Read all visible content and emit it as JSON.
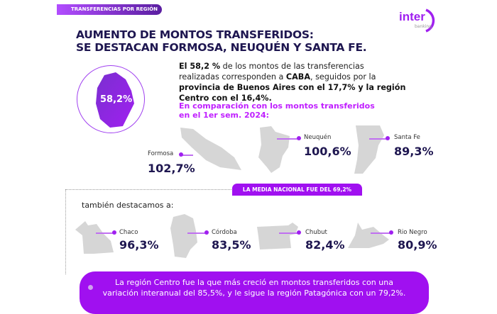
{
  "header": {
    "tag": "TRANSFERENCIAS POR REGIÓN",
    "logo_main": "inter",
    "logo_sub": "banking"
  },
  "title": {
    "line1": "AUMENTO DE MONTOS TRANSFERIDOS:",
    "line2": "SE DESTACAN FORMOSA, NEUQUÉN Y SANTA FE."
  },
  "caba": {
    "value": "58,2%"
  },
  "paragraph": {
    "p1_bold": "El 58,2 %",
    "p1_a": " de los montos de las transferencias realizadas corresponden a ",
    "p1_caba": "CABA",
    "p1_b": ", seguidos por la ",
    "p1_rest": "provincia de Buenos Aires con el 17,7% y la región Centro con el 16,4%."
  },
  "comparison": {
    "line1": "En comparación con los montos transferidos",
    "line2": "en el 1er sem. 2024:"
  },
  "top_provinces": [
    {
      "name": "Formosa",
      "value": "102,7%"
    },
    {
      "name": "Neuquén",
      "value": "100,6%"
    },
    {
      "name": "Santa Fe",
      "value": "89,3%"
    }
  ],
  "media": "LA MEDIA NACIONAL FUE DEL 69,2%",
  "also": "también destacamos a:",
  "other_provinces": [
    {
      "name": "Chaco",
      "value": "96,3%"
    },
    {
      "name": "Córdoba",
      "value": "83,5%"
    },
    {
      "name": "Chubut",
      "value": "82,4%"
    },
    {
      "name": "Rio Negro",
      "value": "80,9%"
    }
  ],
  "banner": {
    "line1": "La región Centro fue la que más creció en montos transferidos con una",
    "line2": "variación interanual del 85,5%, y le sigue la región Patagónica con un 79,2%."
  },
  "colors": {
    "accent": "#a010f0",
    "title": "#1e1650",
    "map_gray": "#d6d6d6"
  }
}
